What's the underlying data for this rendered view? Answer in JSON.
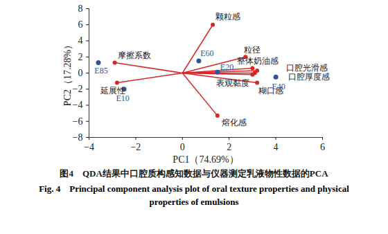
{
  "chart_data": {
    "type": "biplot",
    "title": "图4　QDA结果中口腔质构感知数据与仪器测定乳液物性数据的PCA",
    "subtitle": "Fig. 4　Principal component analysis plot of oral texture properties and physical properties of emulsions",
    "x_label": "PC1（74.69%）",
    "y_label": "PC2（17.28%）",
    "xlim": [
      -4,
      6
    ],
    "xticks": [
      -4,
      -2,
      0,
      2,
      4,
      6
    ],
    "ylim": [
      -8,
      8
    ],
    "yticks": [
      -8,
      -6,
      -4,
      -2,
      0,
      2,
      4,
      6,
      8
    ],
    "loadings": {
      "color": "#d62728",
      "labels": [
        "颗粒感",
        "粒径",
        "整体奶油感",
        "口腔光滑感",
        "口腔厚度感",
        "表观黏度",
        "糊口感",
        "熔化感",
        "摩擦系数",
        "延展性"
      ],
      "x": [
        1.3,
        2.7,
        3.0,
        3.2,
        3.1,
        3.0,
        3.2,
        1.5,
        -2.9,
        -2.8
      ],
      "y": [
        6.0,
        2.0,
        0.6,
        0.3,
        0.0,
        -0.2,
        -1.2,
        -5.3,
        1.3,
        -1.2
      ]
    },
    "scores": {
      "color": "#2f5597",
      "labels": [
        "E85",
        "E10",
        "E60",
        "E20",
        "E40"
      ],
      "x": [
        -3.6,
        -2.5,
        0.7,
        1.5,
        4.0
      ],
      "y": [
        1.3,
        -2.0,
        1.5,
        0.1,
        -0.5
      ]
    }
  }
}
